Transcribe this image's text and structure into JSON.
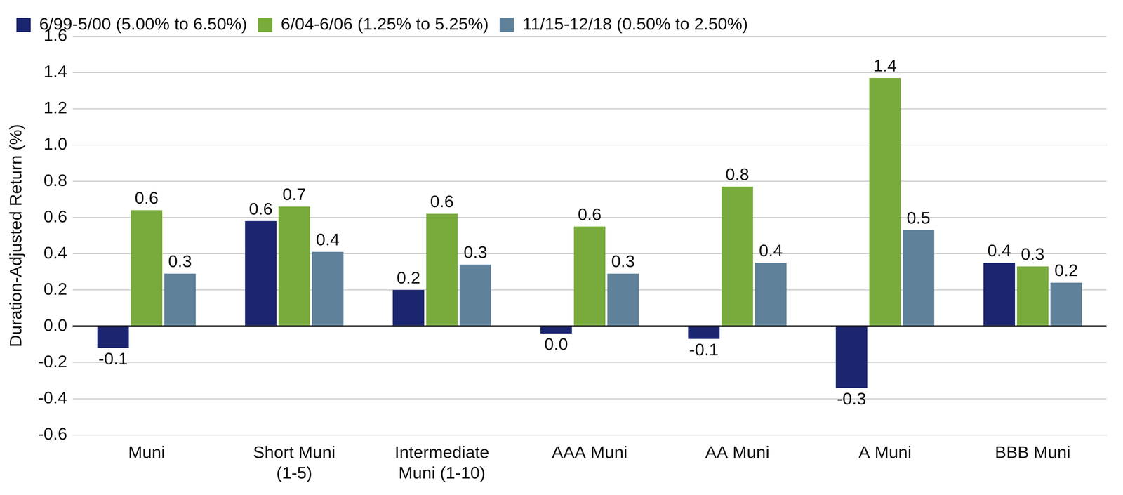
{
  "chart_data": {
    "type": "bar",
    "y_label": "Duration-Adjusted Return (%)",
    "categories": [
      "Muni",
      "Short Muni\n(1-5)",
      "Intermediate\nMuni (1-10)",
      "AAA Muni",
      "AA Muni",
      "A Muni",
      "BBB Muni"
    ],
    "series": [
      {
        "name": "6/99-5/00 (5.00% to 6.50%)",
        "color": "#1b2570",
        "values": [
          -0.12,
          0.58,
          0.2,
          -0.04,
          -0.07,
          -0.34,
          0.35
        ],
        "value_labels": [
          "-0.1",
          "0.6",
          "0.2",
          "0.0",
          "-0.1",
          "-0.3",
          "0.4"
        ]
      },
      {
        "name": "6/04-6/06 (1.25% to 5.25%)",
        "color": "#78ab3b",
        "values": [
          0.64,
          0.66,
          0.62,
          0.55,
          0.77,
          1.37,
          0.33
        ],
        "value_labels": [
          "0.6",
          "0.7",
          "0.6",
          "0.6",
          "0.8",
          "1.4",
          "0.3"
        ]
      },
      {
        "name": "11/15-12/18 (0.50% to 2.50%)",
        "color": "#5f8199",
        "values": [
          0.29,
          0.41,
          0.34,
          0.29,
          0.35,
          0.53,
          0.24
        ],
        "value_labels": [
          "0.3",
          "0.4",
          "0.3",
          "0.3",
          "0.4",
          "0.5",
          "0.2"
        ]
      }
    ],
    "ylim": [
      -0.6,
      1.6
    ],
    "yticks": [
      -0.6,
      -0.4,
      -0.2,
      {
        "value": 0,
        "label": "0.0"
      },
      0.2,
      0.4,
      0.6,
      0.8,
      {
        "value": 1,
        "label": "1.0"
      },
      1.2,
      1.4,
      1.6
    ],
    "grid": true,
    "legend": "top",
    "data_labels": true
  }
}
